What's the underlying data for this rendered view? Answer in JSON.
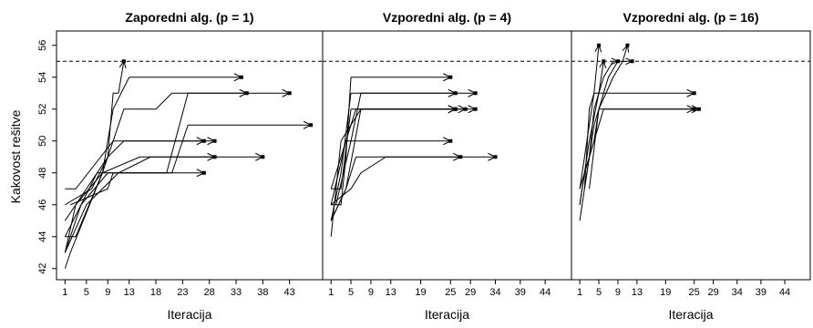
{
  "figure": {
    "ylabel": "Kakovost rešitve",
    "xlabel": "Iteracija"
  },
  "chart_data": [
    {
      "type": "line",
      "title": "Zaporedni alg. (p = 1)",
      "xlabel": "Iteracija",
      "ylabel": "Kakovost rešitve",
      "xlim": [
        0,
        48
      ],
      "ylim": [
        41.7,
        56.5
      ],
      "x_ticks": [
        1,
        5,
        9,
        13,
        18,
        23,
        28,
        33,
        38,
        43
      ],
      "y_ticks": [
        42,
        44,
        46,
        48,
        50,
        52,
        54,
        56
      ],
      "reference_line": 55,
      "series": [
        {
          "x": [
            1,
            2,
            8,
            9,
            10,
            11,
            12
          ],
          "y": [
            42,
            43,
            48,
            49,
            53,
            53,
            55
          ],
          "end": "optimum"
        },
        {
          "x": [
            1,
            3,
            8,
            10,
            13,
            34
          ],
          "y": [
            43,
            46,
            48,
            52,
            54,
            54
          ],
          "end": "stop",
          "arrow_start_x": 13
        },
        {
          "x": [
            1,
            4,
            7,
            20,
            24,
            35,
            43
          ],
          "y": [
            44,
            46,
            48,
            48,
            53,
            53,
            53
          ],
          "end": "stop",
          "arrow_start_x": 35
        },
        {
          "x": [
            1,
            3,
            9,
            12,
            18,
            21,
            24,
            35
          ],
          "y": [
            45,
            46,
            49,
            52,
            52,
            53,
            53,
            53
          ],
          "end": "stop",
          "arrow_start_x": 24
        },
        {
          "x": [
            1,
            4,
            9,
            21,
            24,
            47
          ],
          "y": [
            43,
            46,
            48,
            48,
            51,
            51
          ],
          "end": "stop",
          "arrow_start_x": 24
        },
        {
          "x": [
            1,
            6,
            9,
            12,
            27
          ],
          "y": [
            46,
            47,
            49,
            50,
            50
          ],
          "end": "stop",
          "arrow_start_x": 12
        },
        {
          "x": [
            1,
            3,
            10,
            13,
            29
          ],
          "y": [
            47,
            47,
            50,
            50,
            50
          ],
          "end": "stop",
          "arrow_start_x": 13
        },
        {
          "x": [
            1,
            3,
            8,
            15,
            29
          ],
          "y": [
            44,
            44,
            48,
            49,
            49
          ],
          "end": "stop",
          "arrow_start_x": 15
        },
        {
          "x": [
            1,
            5,
            11,
            17,
            38
          ],
          "y": [
            43,
            46,
            48,
            49,
            49
          ],
          "end": "stop",
          "arrow_start_x": 17
        },
        {
          "x": [
            2,
            9,
            10,
            14,
            15,
            27
          ],
          "y": [
            46,
            47,
            48,
            48,
            48,
            48
          ],
          "end": "stop",
          "arrow_start_x": 14
        }
      ]
    },
    {
      "type": "line",
      "title": "Vzporedni alg. (p = 4)",
      "xlabel": "Iteracija",
      "ylabel": "",
      "xlim": [
        0,
        48
      ],
      "ylim": [
        41.7,
        56.5
      ],
      "x_ticks": [
        1,
        5,
        9,
        13,
        19,
        25,
        29,
        34,
        39,
        44
      ],
      "y_ticks": [],
      "reference_line": 55,
      "series": [
        {
          "x": [
            1,
            3,
            4,
            5,
            25
          ],
          "y": [
            46,
            46,
            49,
            54,
            54
          ],
          "end": "stop",
          "arrow_start_x": 5
        },
        {
          "x": [
            1,
            3,
            5,
            26
          ],
          "y": [
            45,
            48,
            53,
            53
          ],
          "end": "stop",
          "arrow_start_x": 5
        },
        {
          "x": [
            2,
            5,
            7,
            30
          ],
          "y": [
            46,
            50,
            53,
            53
          ],
          "end": "stop",
          "arrow_start_x": 7
        },
        {
          "x": [
            1,
            4,
            6,
            26
          ],
          "y": [
            46,
            50,
            52,
            52
          ],
          "end": "stop",
          "arrow_start_x": 6
        },
        {
          "x": [
            1,
            3,
            7,
            28
          ],
          "y": [
            44,
            50,
            52,
            52
          ],
          "end": "stop",
          "arrow_start_x": 7
        },
        {
          "x": [
            1,
            4,
            7,
            30
          ],
          "y": [
            45,
            47,
            52,
            52
          ],
          "end": "stop",
          "arrow_start_x": 7
        },
        {
          "x": [
            1,
            2,
            4,
            25
          ],
          "y": [
            47,
            48,
            50,
            50
          ],
          "end": "stop",
          "arrow_start_x": 4
        },
        {
          "x": [
            1,
            4,
            6,
            27
          ],
          "y": [
            45,
            47,
            49,
            49
          ],
          "end": "stop",
          "arrow_start_x": 6
        },
        {
          "x": [
            1,
            5,
            7,
            12,
            34
          ],
          "y": [
            46,
            47,
            48,
            49,
            49
          ],
          "end": "stop",
          "arrow_start_x": 12
        },
        {
          "x": [
            1,
            3,
            5,
            26
          ],
          "y": [
            47,
            47,
            52,
            52
          ],
          "end": "stop",
          "arrow_start_x": 5
        }
      ]
    },
    {
      "type": "line",
      "title": "Vzporedni alg. (p = 16)",
      "xlabel": "Iteracija",
      "ylabel": "",
      "xlim": [
        0,
        48
      ],
      "ylim": [
        41.7,
        56.5
      ],
      "x_ticks": [
        1,
        5,
        9,
        13,
        19,
        25,
        29,
        34,
        39,
        44
      ],
      "y_ticks": [],
      "reference_line": 55,
      "series": [
        {
          "x": [
            1,
            2,
            3,
            4,
            5
          ],
          "y": [
            45,
            47,
            52,
            53,
            56
          ],
          "end": "optimum"
        },
        {
          "x": [
            1,
            2,
            3,
            5,
            6
          ],
          "y": [
            46,
            48,
            50,
            53,
            55
          ],
          "end": "optimum"
        },
        {
          "x": [
            2,
            3,
            4,
            6,
            8,
            9
          ],
          "y": [
            47,
            49,
            52,
            54,
            55,
            55
          ],
          "end": "optimum"
        },
        {
          "x": [
            3,
            5,
            8,
            10,
            11
          ],
          "y": [
            47,
            52,
            54,
            55,
            56
          ],
          "end": "optimum"
        },
        {
          "x": [
            2,
            4,
            7,
            9,
            11,
            12
          ],
          "y": [
            47,
            51,
            54,
            55,
            55,
            55
          ],
          "end": "optimum"
        },
        {
          "x": [
            1,
            2,
            3,
            4,
            25
          ],
          "y": [
            47,
            49,
            51,
            53,
            53
          ],
          "end": "stop",
          "arrow_start_x": 4
        },
        {
          "x": [
            1,
            2,
            4,
            5,
            25
          ],
          "y": [
            46,
            48,
            50,
            52,
            52
          ],
          "end": "stop",
          "arrow_start_x": 5
        },
        {
          "x": [
            1,
            3,
            4,
            6,
            26
          ],
          "y": [
            47,
            49,
            50,
            52,
            52
          ],
          "end": "stop",
          "arrow_start_x": 6
        }
      ]
    }
  ]
}
